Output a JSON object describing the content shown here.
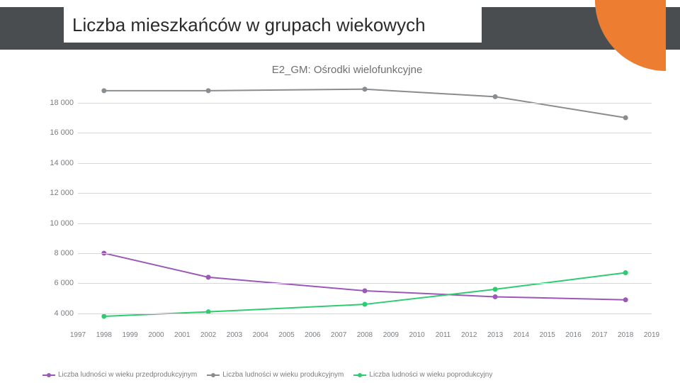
{
  "header": {
    "title": "Liczba mieszkańców w grupach wiekowych",
    "bar_color": "#4a4d50",
    "accent_color": "#ed7d31"
  },
  "chart": {
    "type": "line",
    "title": "E2_GM: Ośrodki wielofunkcyjne",
    "title_color": "#6d6f71",
    "title_fontsize": 15,
    "background_color": "#ffffff",
    "grid_color": "#d4d6d8",
    "axis_label_color": "#7a7d80",
    "axis_label_fontsize": 11,
    "marker_size": 3.5,
    "line_width": 2,
    "x": {
      "ticks": [
        1997,
        1998,
        1999,
        2000,
        2001,
        2002,
        2003,
        2004,
        2005,
        2006,
        2007,
        2008,
        2009,
        2010,
        2011,
        2012,
        2013,
        2014,
        2015,
        2016,
        2017,
        2018,
        2019
      ],
      "min": 1997,
      "max": 2019
    },
    "y": {
      "ticks": [
        4000,
        6000,
        8000,
        10000,
        12000,
        14000,
        16000,
        18000
      ],
      "tick_labels": [
        "4 000",
        "6 000",
        "8 000",
        "10 000",
        "12 000",
        "14 000",
        "16 000",
        "18 000"
      ],
      "min": 3000,
      "max": 19500
    },
    "series": [
      {
        "name": "Liczba ludności w wieku przedprodukcyjnym",
        "color": "#9b59b6",
        "x": [
          1998,
          2002,
          2008,
          2013,
          2018
        ],
        "y": [
          8000,
          6400,
          5500,
          5100,
          4900
        ]
      },
      {
        "name": "Liczba ludności w wieku produkcyjnym",
        "color": "#8a8d90",
        "x": [
          1998,
          2002,
          2008,
          2013,
          2018
        ],
        "y": [
          18800,
          18800,
          18900,
          18400,
          17000
        ]
      },
      {
        "name": "Liczba ludności w wieku poprodukcyjny",
        "color": "#2ecc71",
        "x": [
          1998,
          2002,
          2008,
          2013,
          2018
        ],
        "y": [
          3800,
          4100,
          4600,
          5600,
          6700
        ]
      }
    ]
  }
}
